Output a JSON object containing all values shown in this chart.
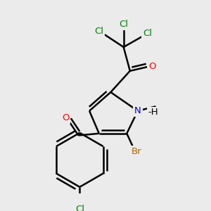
{
  "bg_color": "#ebebeb",
  "bond_color": "#000000",
  "atom_colors": {
    "Cl": "#008000",
    "O": "#ff0000",
    "N": "#0000cc",
    "Br": "#aa6600",
    "H": "#000000",
    "C": "#000000"
  }
}
